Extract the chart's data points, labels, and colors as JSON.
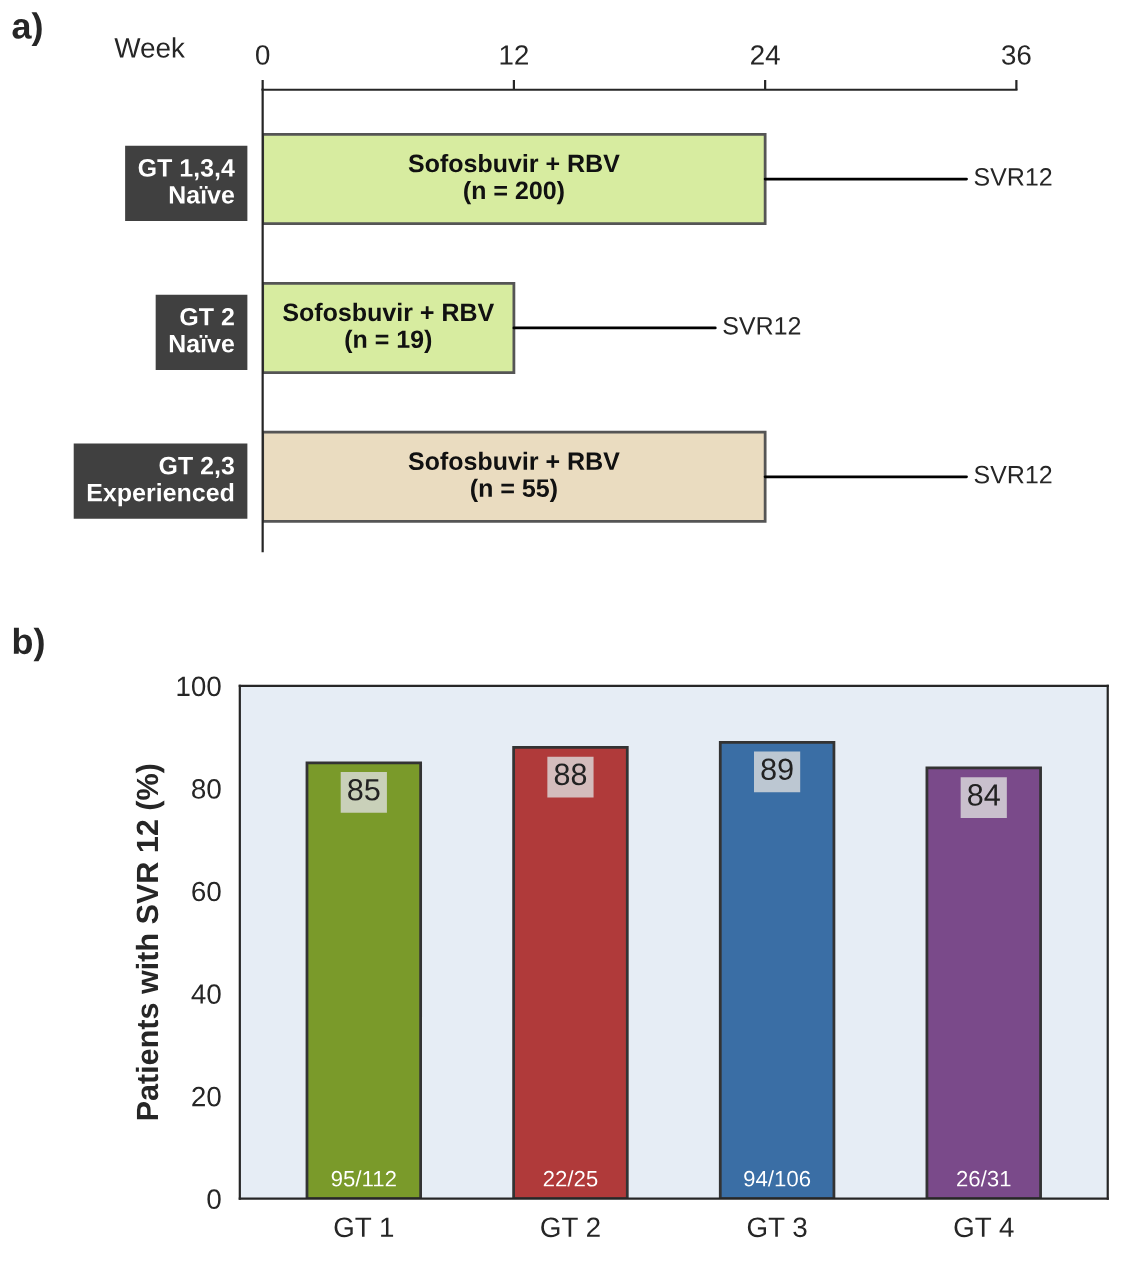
{
  "chart_data": [
    {
      "type": "bar",
      "orientation": "horizontal",
      "categories": [
        "GT 1,3,4\nNaïve",
        "GT 2\nNaïve",
        "GT 2,3\nExperienced"
      ],
      "series": [
        {
          "values": [
            24,
            12,
            24
          ],
          "colors": [
            "#d7eca0",
            "#d7eca0",
            "#eadcc0"
          ]
        }
      ],
      "xlabel": "Week",
      "xlim": [
        0,
        36
      ],
      "xticks": [
        0,
        12,
        24,
        36
      ],
      "annotations": [
        "a)",
        "Sofosbuvir + RBV\n(n = 200)",
        "Sofosbuvir + RBV\n(n = 19)",
        "Sofosbuvir + RBV\n(n = 55)",
        {
          "text": "SVR12",
          "x": 24,
          "y": "GT 1,3,4\nNaïve"
        },
        {
          "text": "SVR12",
          "x": 12,
          "y": "GT 2\nNaïve"
        },
        {
          "text": "SVR12",
          "x": 24,
          "y": "GT 2,3\nExperienced"
        }
      ]
    },
    {
      "type": "bar",
      "categories": [
        "GT 1",
        "GT 2",
        "GT 3",
        "GT 4"
      ],
      "series": [
        {
          "values": [
            85,
            88,
            89,
            84
          ],
          "colors": [
            "#7a9a2a",
            "#b03a3a",
            "#3a6ea5",
            "#7a4a8a"
          ]
        }
      ],
      "ylabel": "Patients with SVR 12 (%)",
      "ylim": [
        0,
        100
      ],
      "yticks": [
        0,
        20,
        40,
        60,
        80,
        100
      ],
      "data_labels": true,
      "annotations": [
        "b)",
        {
          "text": "95/112",
          "x": "GT 1",
          "y": 0
        },
        {
          "text": "22/25",
          "x": "GT 2",
          "y": 0
        },
        {
          "text": "94/106",
          "x": "GT 3",
          "y": 0
        },
        {
          "text": "26/31",
          "x": "GT 4",
          "y": 0
        }
      ]
    }
  ]
}
